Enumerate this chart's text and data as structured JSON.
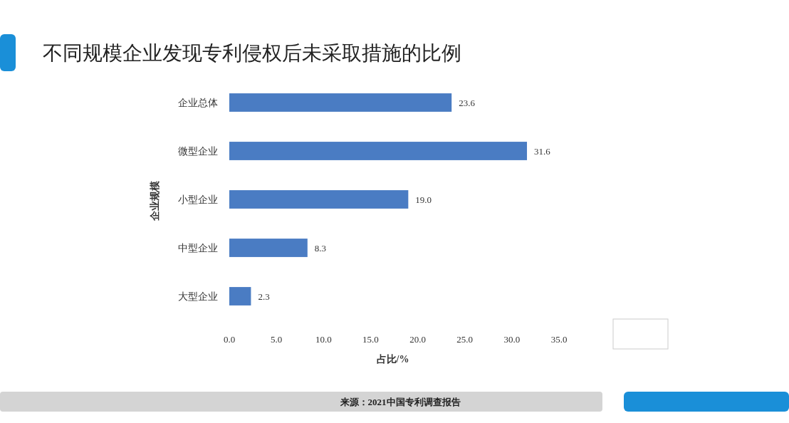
{
  "chart_data": {
    "type": "bar",
    "orientation": "horizontal",
    "title": "不同规模企业发现专利侵权后未采取措施的比例",
    "categories": [
      "企业总体",
      "微型企业",
      "小型企业",
      "中型企业",
      "大型企业"
    ],
    "values": [
      23.6,
      31.6,
      19.0,
      8.3,
      2.3
    ],
    "value_labels": [
      "23.6",
      "31.6",
      "19.0",
      "8.3",
      "2.3"
    ],
    "color": "#4a7cc3",
    "xlabel": "占比/%",
    "ylabel": "企业规模",
    "xlim": [
      0,
      35
    ],
    "xticks": [
      {
        "value": 0,
        "label": "0.0"
      },
      {
        "value": 5,
        "label": "5.0"
      },
      {
        "value": 10,
        "label": "10.0"
      },
      {
        "value": 15,
        "label": "15.0"
      },
      {
        "value": 20,
        "label": "20.0"
      },
      {
        "value": 25,
        "label": "25.0"
      },
      {
        "value": 30,
        "label": "30.0"
      },
      {
        "value": 35,
        "label": "35.0"
      }
    ],
    "annotations": [
      "来源：2021中国专利调查报告"
    ]
  }
}
